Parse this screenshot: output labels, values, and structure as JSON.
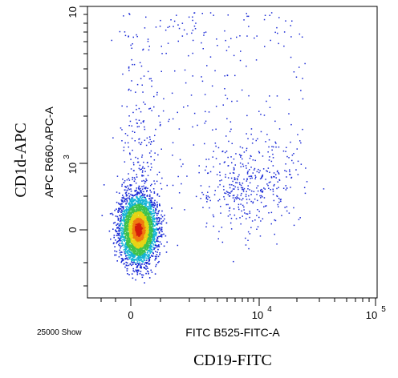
{
  "chart_data": {
    "type": "scatter",
    "x_parameter": "FITC B525-FITC-A",
    "y_parameter": "APC R660-APC-A",
    "x_marker": "CD19-FITC",
    "y_marker": "CD1d-APC",
    "event_count_label": "25000 Show",
    "x_scale": "biexponential",
    "y_scale": "biexponential",
    "x_ticks": [
      {
        "value": 0,
        "label": "0"
      },
      {
        "value": 10000,
        "label": "10^4"
      },
      {
        "value": 100000,
        "label": "10^5"
      }
    ],
    "y_ticks": [
      {
        "value": 0,
        "label": "0"
      },
      {
        "value": 1000,
        "label": "10^3"
      },
      {
        "value": 10000,
        "label": "10^4"
      }
    ],
    "grid": false,
    "legend": "none",
    "color_scheme": "density (blue to green to yellow to red)",
    "populations": [
      {
        "name": "main-cluster",
        "x_center": 150,
        "y_center": -50,
        "share": 0.8
      },
      {
        "name": "cd19-positive-cluster",
        "x_center": 8000,
        "y_center": 800,
        "share": 0.1
      },
      {
        "name": "sparse-upper",
        "share": 0.1
      }
    ]
  }
}
